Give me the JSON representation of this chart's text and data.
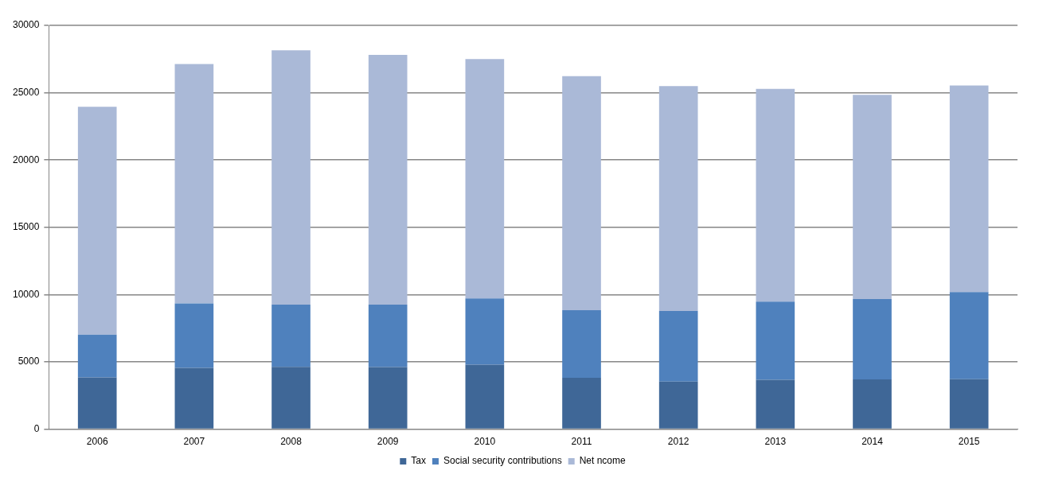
{
  "chart_data": {
    "type": "bar",
    "stacked": true,
    "categories": [
      "2006",
      "2007",
      "2008",
      "2009",
      "2010",
      "2011",
      "2012",
      "2013",
      "2014",
      "2015"
    ],
    "series": [
      {
        "name": "Tax",
        "color": "#3f6797",
        "values": [
          3850,
          4560,
          4630,
          4610,
          4800,
          3820,
          3540,
          3670,
          3700,
          3720
        ]
      },
      {
        "name": "Social security contributions",
        "color": "#4f81bd",
        "values": [
          3180,
          4780,
          4630,
          4650,
          4910,
          5020,
          5240,
          5800,
          5970,
          6460
        ]
      },
      {
        "name": "Net ncome",
        "color": "#aab9d7",
        "values": [
          16920,
          17790,
          18900,
          18560,
          17790,
          17390,
          16710,
          15820,
          15170,
          15360
        ]
      }
    ],
    "ylim": [
      0,
      30000
    ],
    "yticks": [
      0,
      5000,
      10000,
      15000,
      20000,
      25000,
      30000
    ],
    "grid": "y",
    "legend": "bottom"
  }
}
